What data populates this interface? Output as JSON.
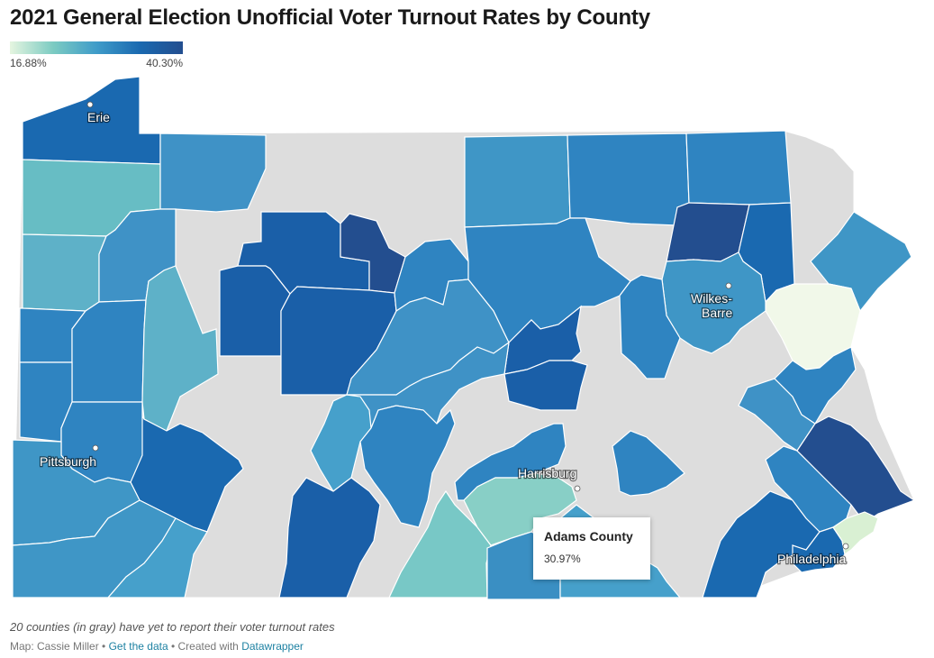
{
  "title": "2021 General Election Unofficial Voter Turnout Rates by County",
  "legend": {
    "min_label": "16.88%",
    "max_label": "40.30%",
    "min": 16.88,
    "max": 40.3,
    "no_data_color": "#dddddd"
  },
  "cities": {
    "erie": "Erie",
    "pittsburgh": "Pittsburgh",
    "harrisburg": "Harrisburg",
    "wilkes_barre_1": "Wilkes-",
    "wilkes_barre_2": "Barre",
    "philadelphia": "Philadelphia"
  },
  "tooltip": {
    "name": "Adams County",
    "value": "30.97%"
  },
  "note": "20 counties (in gray) have yet to report their voter turnout rates",
  "footer": {
    "map_by": "Map: Cassie Miller",
    "sep1": " • ",
    "get_data": "Get the data",
    "sep2": " • Created with ",
    "tool": "Datawrapper"
  }
}
